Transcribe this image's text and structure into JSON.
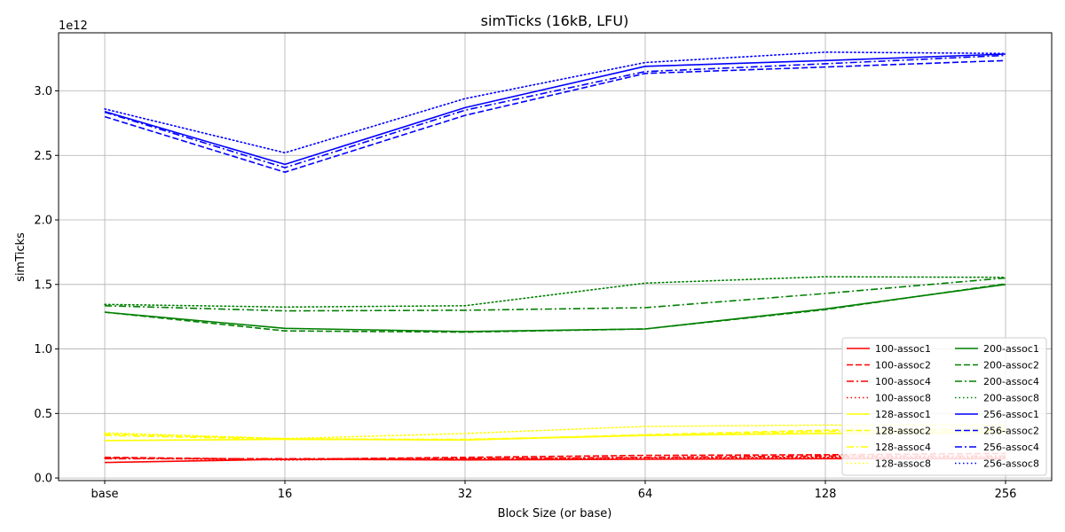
{
  "chart_data": {
    "type": "line",
    "title": "simTicks (16kB, LFU)",
    "xlabel": "Block Size (or base)",
    "ylabel": "simTicks",
    "y_offset_label": "1e12",
    "categories": [
      "base",
      "16",
      "32",
      "64",
      "128",
      "256"
    ],
    "y_ticks": [
      "0.0",
      "0.5",
      "1.0",
      "1.5",
      "2.0",
      "2.5",
      "3.0"
    ],
    "ylim": [
      -0.02,
      3.45
    ],
    "grid": true,
    "legend_position": "lower-right",
    "series": [
      {
        "name": "100-assoc1",
        "color": "#ff0000",
        "dash": "solid",
        "values": [
          0.12,
          0.145,
          0.14,
          0.145,
          0.15,
          0.15
        ]
      },
      {
        "name": "100-assoc2",
        "color": "#ff0000",
        "dash": "dashed",
        "values": [
          0.16,
          0.145,
          0.16,
          0.175,
          0.18,
          0.19
        ]
      },
      {
        "name": "100-assoc4",
        "color": "#ff0000",
        "dash": "dashdot",
        "values": [
          0.15,
          0.15,
          0.15,
          0.16,
          0.17,
          0.17
        ]
      },
      {
        "name": "100-assoc8",
        "color": "#ff0000",
        "dash": "dotted",
        "values": [
          0.155,
          0.14,
          0.15,
          0.155,
          0.16,
          0.16
        ]
      },
      {
        "name": "128-assoc1",
        "color": "#ffff00",
        "dash": "solid",
        "values": [
          0.29,
          0.3,
          0.295,
          0.33,
          0.345,
          0.35
        ]
      },
      {
        "name": "128-assoc2",
        "color": "#ffff00",
        "dash": "dashed",
        "values": [
          0.34,
          0.305,
          0.295,
          0.335,
          0.37,
          0.38
        ]
      },
      {
        "name": "128-assoc4",
        "color": "#ffff00",
        "dash": "dashdot",
        "values": [
          0.33,
          0.3,
          0.3,
          0.33,
          0.36,
          0.37
        ]
      },
      {
        "name": "128-assoc8",
        "color": "#ffff00",
        "dash": "dotted",
        "values": [
          0.35,
          0.305,
          0.345,
          0.4,
          0.41,
          0.41
        ]
      },
      {
        "name": "200-assoc1",
        "color": "#008000",
        "dash": "solid",
        "values": [
          1.285,
          1.16,
          1.135,
          1.155,
          1.31,
          1.5
        ]
      },
      {
        "name": "200-assoc2",
        "color": "#008000",
        "dash": "dashed",
        "values": [
          1.285,
          1.14,
          1.13,
          1.155,
          1.305,
          1.505
        ]
      },
      {
        "name": "200-assoc4",
        "color": "#008000",
        "dash": "dashdot",
        "values": [
          1.335,
          1.295,
          1.3,
          1.32,
          1.43,
          1.55
        ]
      },
      {
        "name": "200-assoc8",
        "color": "#008000",
        "dash": "dotted",
        "values": [
          1.345,
          1.325,
          1.335,
          1.51,
          1.56,
          1.555
        ]
      },
      {
        "name": "256-assoc1",
        "color": "#0000ff",
        "dash": "solid",
        "values": [
          2.84,
          2.43,
          2.87,
          3.19,
          3.235,
          3.285
        ]
      },
      {
        "name": "256-assoc2",
        "color": "#0000ff",
        "dash": "dashed",
        "values": [
          2.8,
          2.37,
          2.81,
          3.135,
          3.185,
          3.235
        ]
      },
      {
        "name": "256-assoc4",
        "color": "#0000ff",
        "dash": "dashdot",
        "values": [
          2.835,
          2.405,
          2.85,
          3.15,
          3.21,
          3.275
        ]
      },
      {
        "name": "256-assoc8",
        "color": "#0000ff",
        "dash": "dotted",
        "values": [
          2.86,
          2.52,
          2.94,
          3.22,
          3.3,
          3.29
        ]
      }
    ]
  }
}
